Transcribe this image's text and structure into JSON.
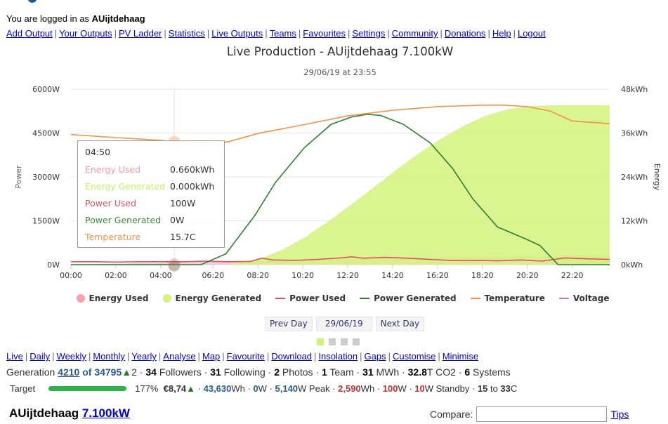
{
  "header": {
    "logged_in_prefix": "You are logged in as ",
    "username": "AUijtdehaag"
  },
  "nav": [
    "Add Output",
    "Your Outputs",
    "PV Ladder",
    "Statistics",
    "Live Outputs",
    "Teams",
    "Favourites",
    "Settings",
    "Community",
    "Donations",
    "Help",
    "Logout"
  ],
  "chart_data": {
    "type": "line",
    "title": "Live Production - AUijtdehaag 7.100kW",
    "subtitle": "29/06/19 at 23:55",
    "x_ticks": [
      "00:00",
      "02:00",
      "04:00",
      "06:20",
      "08:20",
      "10:20",
      "12:20",
      "14:20",
      "16:20",
      "18:20",
      "20:20",
      "22:20"
    ],
    "xlim_hours": [
      0,
      24
    ],
    "y_left": {
      "label": "Power",
      "ticks": [
        "0W",
        "1500W",
        "3000W",
        "4500W",
        "6000W"
      ],
      "range": [
        0,
        6000
      ],
      "unit": "W"
    },
    "y_right": {
      "label": "Energy",
      "ticks": [
        "0kWh",
        "12kWh",
        "24kWh",
        "36kWh",
        "48kWh"
      ],
      "range": [
        0,
        48
      ],
      "unit": "kWh"
    },
    "grid": true,
    "legend_position": "bottom",
    "series": [
      {
        "name": "Energy Used",
        "type": "area",
        "axis": "right",
        "color": "#f4a3ab",
        "x": [
          0,
          4.83,
          8,
          12,
          16,
          20,
          24
        ],
        "values": [
          0,
          0.66,
          1.0,
          1.5,
          1.9,
          2.3,
          2.59
        ]
      },
      {
        "name": "Energy Generated",
        "type": "area",
        "axis": "right",
        "color": "#d4f37c",
        "x": [
          0,
          7,
          7.5,
          8.5,
          9.5,
          10.5,
          11.5,
          12.5,
          13.5,
          14.5,
          15.5,
          16.5,
          17.5,
          18.5,
          19.5,
          20.5,
          21.5,
          24
        ],
        "values": [
          0,
          0,
          0.5,
          1.8,
          4.3,
          7.8,
          12,
          16.5,
          21.2,
          26,
          30.5,
          34.5,
          38,
          40.8,
          42.6,
          43.4,
          43.63,
          43.63
        ]
      },
      {
        "name": "Power Used",
        "type": "line",
        "axis": "left",
        "color": "#d9535f",
        "x": [
          0,
          1,
          2,
          3,
          4,
          4.83,
          5,
          6,
          7,
          8,
          8.5,
          9,
          10,
          11,
          12,
          12.5,
          13,
          14,
          15,
          16,
          17,
          18,
          19,
          20,
          21,
          22,
          23,
          24
        ],
        "values": [
          100,
          100,
          90,
          100,
          100,
          100,
          100,
          120,
          100,
          110,
          220,
          160,
          150,
          180,
          230,
          270,
          220,
          250,
          220,
          180,
          140,
          150,
          130,
          160,
          120,
          230,
          200,
          180
        ]
      },
      {
        "name": "Power Generated",
        "type": "line",
        "axis": "left",
        "color": "#2e7d32",
        "x": [
          0,
          5.8,
          6.9,
          8.2,
          9.1,
          10.4,
          11.6,
          12.5,
          13.2,
          13.8,
          14.8,
          16,
          17,
          17.9,
          19,
          20.2,
          20.9,
          21.7,
          24
        ],
        "values": [
          0,
          0,
          370,
          1690,
          2800,
          4000,
          4800,
          5050,
          5140,
          5100,
          4800,
          4170,
          3290,
          2250,
          1290,
          900,
          650,
          0,
          0
        ]
      },
      {
        "name": "Temperature",
        "type": "line",
        "axis": "hidden",
        "unit": "C",
        "color": "#f0924a",
        "x": [
          0,
          2,
          4,
          4.83,
          6,
          7,
          8.33,
          10.33,
          12.33,
          14.33,
          16.33,
          18.33,
          19.33,
          20.33,
          21.33,
          22.33,
          24
        ],
        "values": [
          19.3,
          17.9,
          16.6,
          15.7,
          15.3,
          15.9,
          19.8,
          23.8,
          28.0,
          30.6,
          32.3,
          33.0,
          33.0,
          32.3,
          30.3,
          25.6,
          24.4
        ]
      },
      {
        "name": "Voltage",
        "type": "line",
        "axis": "hidden",
        "color": "#c875c4",
        "x": [],
        "values": []
      }
    ]
  },
  "tooltip": {
    "time": "04:50",
    "rows": [
      {
        "label": "Energy Used",
        "value": "0.660kWh",
        "color": "#f09aa2"
      },
      {
        "label": "Energy Generated",
        "value": "0.000kWh",
        "color": "#c8ef6a"
      },
      {
        "label": "Power Used",
        "value": "100W",
        "color": "#d9535f"
      },
      {
        "label": "Power Generated",
        "value": "0W",
        "color": "#3a8a3a"
      },
      {
        "label": "Temperature",
        "value": "15.7C",
        "color": "#f0924a"
      }
    ]
  },
  "day_nav": {
    "prev": "Prev Day",
    "date": "29/06/19",
    "next": "Next Day"
  },
  "tabs": [
    "Live",
    "Daily",
    "Weekly",
    "Monthly",
    "Yearly",
    "Analyse",
    "Map",
    "Favourite",
    "Download",
    "Insolation",
    "Gaps",
    "Customise",
    "Minimise"
  ],
  "stats": {
    "generation_label": "Generation ",
    "rank": "4210",
    "of": " of 34795",
    "rank_change": "2",
    "followers": "34",
    "following": "31",
    "photos": "2",
    "team": "1",
    "mwh": "31",
    "co2": "32.8",
    "systems": "6"
  },
  "target": {
    "label": "Target",
    "progress_percent": 177,
    "percent_text": "177%",
    "money": "€8,74",
    "energy": "43,630",
    "power_now": "0",
    "peak": "5,140",
    "used": "2,590",
    "used_power": "100",
    "standby": "10",
    "temp_min": "15",
    "temp_max": "33"
  },
  "system": {
    "name": "AUijtdehaag",
    "size": "7.100kW"
  },
  "compare": {
    "label": "Compare:",
    "value": "",
    "tips": "Tips"
  }
}
